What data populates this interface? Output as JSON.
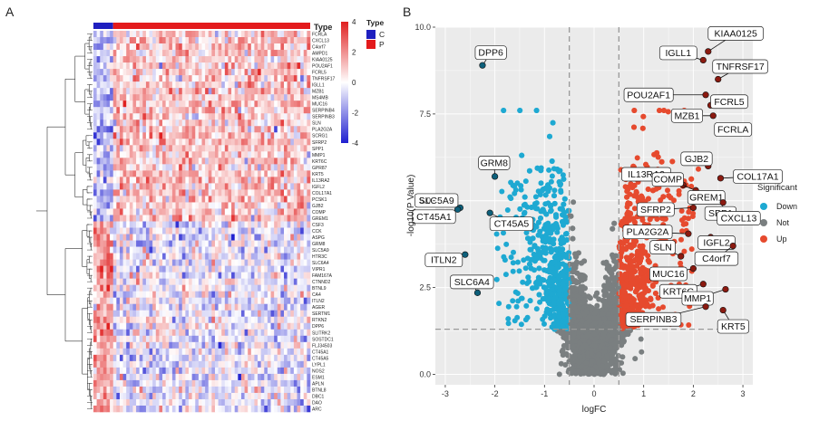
{
  "panels": {
    "left_letter": "A",
    "right_letter": "B"
  },
  "chart_data": [
    {
      "type": "heatmap",
      "column_annotation": {
        "label": "Type",
        "groups": [
          {
            "name": "C",
            "color": "#1f1fbf",
            "columns": 6
          },
          {
            "name": "P",
            "color": "#e31a1c",
            "columns": 60
          }
        ]
      },
      "color_scale": {
        "ticks": [
          4,
          2,
          0,
          -2,
          -4
        ],
        "low_color": "#1f1fd0",
        "mid_color": "#ffffff",
        "high_color": "#e02020"
      },
      "legend_title": "Type",
      "row_labels": [
        "FCRLA",
        "CXCL13",
        "C4orf7",
        "AMPD1",
        "KIAA0125",
        "POU2AF1",
        "FCRL5",
        "TNFRSF17",
        "IGLL1",
        "MZB1",
        "MS4MB",
        "MUC16",
        "SERPINB4",
        "SERPINB3",
        "SLN",
        "PLA2G2A",
        "SCRG1",
        "SFRP2",
        "SPP1",
        "MMP1",
        "KRT6C",
        "GPR87",
        "KRT5",
        "IL13RA2",
        "IGFL2",
        "COL17A1",
        "PCSK1",
        "GJB2",
        "COMP",
        "GREM1",
        "CSF3",
        "CCK",
        "ASPG",
        "GRM8",
        "SLC5A9",
        "HTR3C",
        "SLC6A4",
        "VIPR1",
        "FAM167A",
        "CTNND2",
        "BTNL9",
        "CA4",
        "ITLN2",
        "AGER",
        "SERTM1",
        "RTKN2",
        "DPP6",
        "SLITRK2",
        "SOSTDC1",
        "FLJ34503",
        "CT45A1",
        "CT45A5",
        "LYPL1",
        "NOS2",
        "ESM1",
        "APLN",
        "BTNL8",
        "DBC1",
        "DAO",
        "ARC"
      ],
      "up_rows": 30,
      "down_rows": 30
    },
    {
      "type": "scatter",
      "title": "",
      "xlabel": "logFC",
      "ylabel": "-log10(P Value)",
      "xlim": [
        -3.2,
        3.2
      ],
      "ylim": [
        -0.3,
        10.0
      ],
      "x_ticks": [
        -3,
        -2,
        -1,
        0,
        1,
        2,
        3
      ],
      "y_ticks": [
        0.0,
        2.5,
        5.0,
        7.5,
        10.0
      ],
      "y_tick_labels": [
        "0.0",
        "2.5",
        "5.0",
        "7.5",
        "10.0"
      ],
      "thresholds": {
        "logFC": [
          -0.5,
          0.5
        ],
        "neg_log10_p": 1.3
      },
      "legend": {
        "title": "Significant",
        "entries": [
          {
            "name": "Down",
            "color": "#1ea9d2"
          },
          {
            "name": "Not",
            "color": "#7a7f80"
          },
          {
            "name": "Up",
            "color": "#e64a2e"
          }
        ]
      },
      "labeled_points": [
        {
          "label": "DPP6",
          "x": -2.25,
          "y": 8.9,
          "group": "Down"
        },
        {
          "label": "GRM8",
          "x": -2.0,
          "y": 5.7,
          "group": "Down"
        },
        {
          "label": "SLC5A9",
          "x": -2.7,
          "y": 4.8,
          "group": "Down"
        },
        {
          "label": "CT45A1",
          "x": -2.75,
          "y": 4.75,
          "group": "Down"
        },
        {
          "label": "CT45A5",
          "x": -2.1,
          "y": 4.65,
          "group": "Down"
        },
        {
          "label": "ITLN2",
          "x": -2.6,
          "y": 3.45,
          "group": "Down"
        },
        {
          "label": "SLC6A4",
          "x": -2.35,
          "y": 2.35,
          "group": "Down"
        },
        {
          "label": "KIAA0125",
          "x": 2.3,
          "y": 9.3,
          "group": "Up"
        },
        {
          "label": "IGLL1",
          "x": 2.2,
          "y": 9.05,
          "group": "Up"
        },
        {
          "label": "TNFRSF17",
          "x": 2.5,
          "y": 8.5,
          "group": "Up"
        },
        {
          "label": "POU2AF1",
          "x": 2.25,
          "y": 8.05,
          "group": "Up"
        },
        {
          "label": "FCRL5",
          "x": 2.35,
          "y": 7.75,
          "group": "Up"
        },
        {
          "label": "MZB1",
          "x": 2.4,
          "y": 7.45,
          "group": "Up"
        },
        {
          "label": "FCRLA",
          "x": 2.5,
          "y": 7.0,
          "group": "Up"
        },
        {
          "label": "GJB2",
          "x": 2.3,
          "y": 6.0,
          "group": "Up"
        },
        {
          "label": "COL17A1",
          "x": 2.55,
          "y": 5.65,
          "group": "Up"
        },
        {
          "label": "IL13RA2",
          "x": 1.8,
          "y": 5.45,
          "group": "Up"
        },
        {
          "label": "COMP",
          "x": 2.05,
          "y": 5.3,
          "group": "Up"
        },
        {
          "label": "GREM1",
          "x": 2.4,
          "y": 5.15,
          "group": "Up"
        },
        {
          "label": "SFRP2",
          "x": 2.0,
          "y": 4.8,
          "group": "Up"
        },
        {
          "label": "SPP1",
          "x": 2.6,
          "y": 4.95,
          "group": "Up"
        },
        {
          "label": "CXCL13",
          "x": 2.7,
          "y": 4.55,
          "group": "Up"
        },
        {
          "label": "PLA2G2A",
          "x": 1.9,
          "y": 4.05,
          "group": "Up"
        },
        {
          "label": "IGFL2",
          "x": 2.35,
          "y": 3.95,
          "group": "Up"
        },
        {
          "label": "SLN",
          "x": 1.75,
          "y": 3.4,
          "group": "Up"
        },
        {
          "label": "C4orf7",
          "x": 2.8,
          "y": 3.7,
          "group": "Up"
        },
        {
          "label": "MUC16",
          "x": 2.0,
          "y": 3.05,
          "group": "Up"
        },
        {
          "label": "KRT6C",
          "x": 2.2,
          "y": 2.6,
          "group": "Up"
        },
        {
          "label": "MMP1",
          "x": 2.65,
          "y": 2.45,
          "group": "Up"
        },
        {
          "label": "SERPINB3",
          "x": 2.25,
          "y": 1.95,
          "group": "Up"
        },
        {
          "label": "KRT5",
          "x": 2.6,
          "y": 1.85,
          "group": "Up"
        }
      ]
    }
  ]
}
